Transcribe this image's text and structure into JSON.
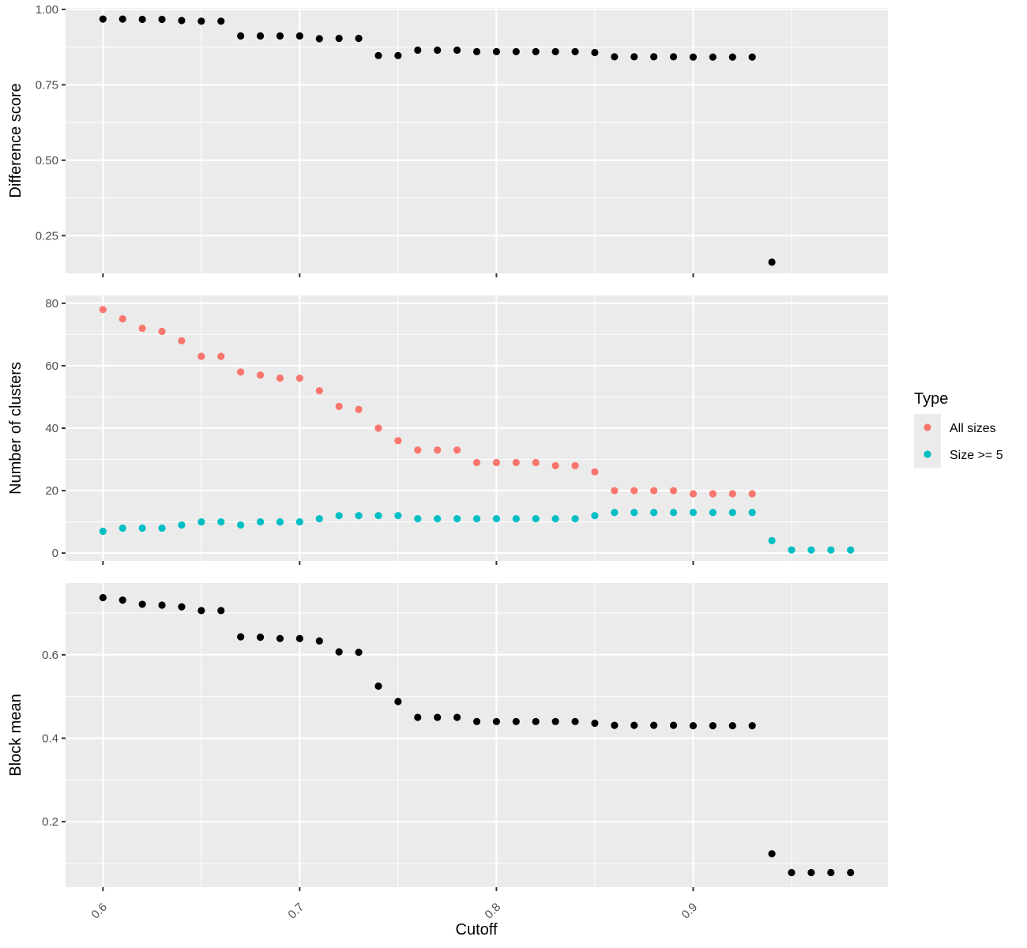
{
  "chart_data": {
    "type": "scatter",
    "x_label": "Cutoff",
    "x_ticks": [
      0.6,
      0.7,
      0.8,
      0.9
    ],
    "x_range": [
      0.581,
      0.999
    ],
    "x": [
      0.6,
      0.61,
      0.62,
      0.63,
      0.64,
      0.65,
      0.66,
      0.67,
      0.68,
      0.69,
      0.7,
      0.71,
      0.72,
      0.73,
      0.74,
      0.75,
      0.76,
      0.77,
      0.78,
      0.79,
      0.8,
      0.81,
      0.82,
      0.83,
      0.84,
      0.85,
      0.86,
      0.87,
      0.88,
      0.89,
      0.9,
      0.91,
      0.92,
      0.93,
      0.94,
      0.95,
      0.96,
      0.97,
      0.98
    ],
    "legend": {
      "title": "Type",
      "entries": [
        {
          "name": "All sizes",
          "color": "#f8766d"
        },
        {
          "name": "Size >= 5",
          "color": "#00bfc4"
        }
      ]
    },
    "panels": [
      {
        "ylabel": "Difference score",
        "ylim": [
          0.125,
          1.005
        ],
        "y_ticks": [
          0.25,
          0.5,
          0.75,
          1.0
        ],
        "y_tick_labels": [
          "0.25",
          "0.50",
          "0.75",
          "1.00"
        ],
        "series": [
          {
            "color": "#000000",
            "x": [
              0.6,
              0.61,
              0.62,
              0.63,
              0.64,
              0.65,
              0.66,
              0.67,
              0.68,
              0.69,
              0.7,
              0.71,
              0.72,
              0.73,
              0.74,
              0.75,
              0.76,
              0.77,
              0.78,
              0.79,
              0.8,
              0.81,
              0.82,
              0.83,
              0.84,
              0.85,
              0.86,
              0.87,
              0.88,
              0.89,
              0.9,
              0.91,
              0.92,
              0.93,
              0.94
            ],
            "values": [
              0.968,
              0.968,
              0.967,
              0.967,
              0.963,
              0.961,
              0.961,
              0.912,
              0.912,
              0.912,
              0.912,
              0.903,
              0.904,
              0.904,
              0.847,
              0.847,
              0.865,
              0.865,
              0.865,
              0.86,
              0.86,
              0.86,
              0.86,
              0.86,
              0.86,
              0.857,
              0.843,
              0.843,
              0.843,
              0.843,
              0.842,
              0.842,
              0.842,
              0.842,
              0.162
            ]
          }
        ]
      },
      {
        "ylabel": "Number of clusters",
        "ylim": [
          -2.5,
          82.5
        ],
        "y_ticks": [
          0,
          20,
          40,
          60,
          80
        ],
        "y_tick_labels": [
          "0",
          "20",
          "40",
          "60",
          "80"
        ],
        "series": [
          {
            "name": "All sizes",
            "color": "#f8766d",
            "x": [
              0.6,
              0.61,
              0.62,
              0.63,
              0.64,
              0.65,
              0.66,
              0.67,
              0.68,
              0.69,
              0.7,
              0.71,
              0.72,
              0.73,
              0.74,
              0.75,
              0.76,
              0.77,
              0.78,
              0.79,
              0.8,
              0.81,
              0.82,
              0.83,
              0.84,
              0.85,
              0.86,
              0.87,
              0.88,
              0.89,
              0.9,
              0.91,
              0.92,
              0.93
            ],
            "values": [
              78,
              75,
              72,
              71,
              68,
              63,
              63,
              58,
              57,
              56,
              56,
              52,
              47,
              46,
              40,
              36,
              33,
              33,
              33,
              29,
              29,
              29,
              29,
              28,
              28,
              26,
              20,
              20,
              20,
              20,
              19,
              19,
              19,
              19
            ]
          },
          {
            "name": "Size >= 5",
            "color": "#00bfc4",
            "x": [
              0.6,
              0.61,
              0.62,
              0.63,
              0.64,
              0.65,
              0.66,
              0.67,
              0.68,
              0.69,
              0.7,
              0.71,
              0.72,
              0.73,
              0.74,
              0.75,
              0.76,
              0.77,
              0.78,
              0.79,
              0.8,
              0.81,
              0.82,
              0.83,
              0.84,
              0.85,
              0.86,
              0.87,
              0.88,
              0.89,
              0.9,
              0.91,
              0.92,
              0.93,
              0.94,
              0.95,
              0.96,
              0.97,
              0.98
            ],
            "values": [
              7,
              8,
              8,
              8,
              9,
              10,
              10,
              9,
              10,
              10,
              10,
              11,
              12,
              12,
              12,
              12,
              11,
              11,
              11,
              11,
              11,
              11,
              11,
              11,
              11,
              12,
              13,
              13,
              13,
              13,
              13,
              13,
              13,
              13,
              4,
              1,
              1,
              1,
              1
            ]
          }
        ]
      },
      {
        "ylabel": "Block mean",
        "ylim": [
          0.043,
          0.772
        ],
        "y_ticks": [
          0.2,
          0.4,
          0.6
        ],
        "y_tick_labels": [
          "0.2",
          "0.4",
          "0.6"
        ],
        "series": [
          {
            "color": "#000000",
            "x": [
              0.6,
              0.61,
              0.62,
              0.63,
              0.64,
              0.65,
              0.66,
              0.67,
              0.68,
              0.69,
              0.7,
              0.71,
              0.72,
              0.73,
              0.74,
              0.75,
              0.76,
              0.77,
              0.78,
              0.79,
              0.8,
              0.81,
              0.82,
              0.83,
              0.84,
              0.85,
              0.86,
              0.87,
              0.88,
              0.89,
              0.9,
              0.91,
              0.92,
              0.93,
              0.94,
              0.95,
              0.96,
              0.97,
              0.98
            ],
            "values": [
              0.737,
              0.731,
              0.721,
              0.719,
              0.715,
              0.706,
              0.706,
              0.643,
              0.642,
              0.639,
              0.639,
              0.633,
              0.607,
              0.606,
              0.525,
              0.488,
              0.45,
              0.45,
              0.45,
              0.44,
              0.44,
              0.44,
              0.44,
              0.44,
              0.44,
              0.436,
              0.431,
              0.431,
              0.431,
              0.431,
              0.43,
              0.43,
              0.43,
              0.43,
              0.123,
              0.078,
              0.078,
              0.078,
              0.078
            ]
          }
        ]
      }
    ]
  }
}
